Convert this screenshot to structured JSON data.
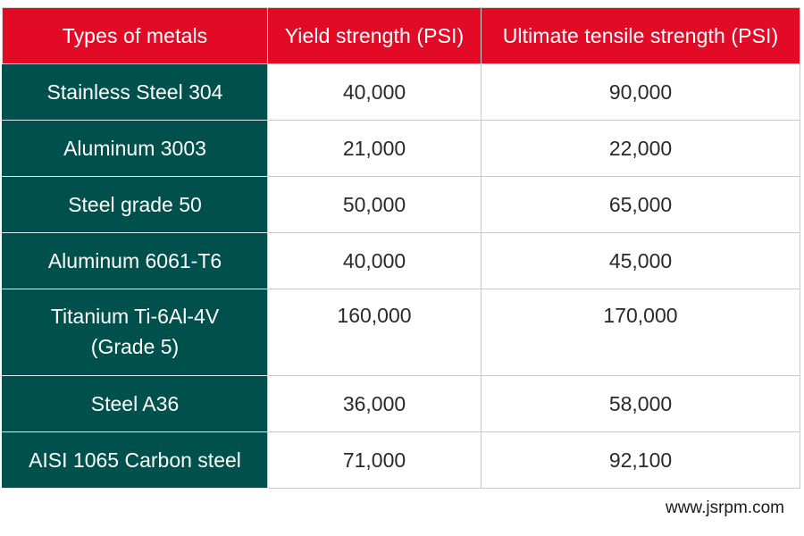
{
  "table": {
    "headers": [
      "Types of metals",
      "Yield strength (PSI)",
      "Ultimate tensile strength (PSI)"
    ],
    "rows": [
      {
        "metal": "Stainless Steel 304",
        "yield": "40,000",
        "uts": "90,000"
      },
      {
        "metal": "Aluminum 3003",
        "yield": "21,000",
        "uts": "22,000"
      },
      {
        "metal": "Steel grade 50",
        "yield": "50,000",
        "uts": "65,000"
      },
      {
        "metal": "Aluminum 6061-T6",
        "yield": "40,000",
        "uts": "45,000"
      },
      {
        "metal": "Titanium Ti-6Al-4V (Grade 5)",
        "metal_line1": "Titanium Ti-6Al-4V",
        "metal_line2": "(Grade 5)",
        "yield": "160,000",
        "uts": "170,000"
      },
      {
        "metal": "Steel A36",
        "yield": "36,000",
        "uts": "58,000"
      },
      {
        "metal": "AISI 1065 Carbon steel",
        "yield": "71,000",
        "uts": "92,100"
      }
    ]
  },
  "watermark": "www.jsrpm.com",
  "colors": {
    "header_bg": "#e30a26",
    "metal_col_bg": "#00514d",
    "header_text": "#ffffff",
    "value_text": "#2a2a2a"
  }
}
